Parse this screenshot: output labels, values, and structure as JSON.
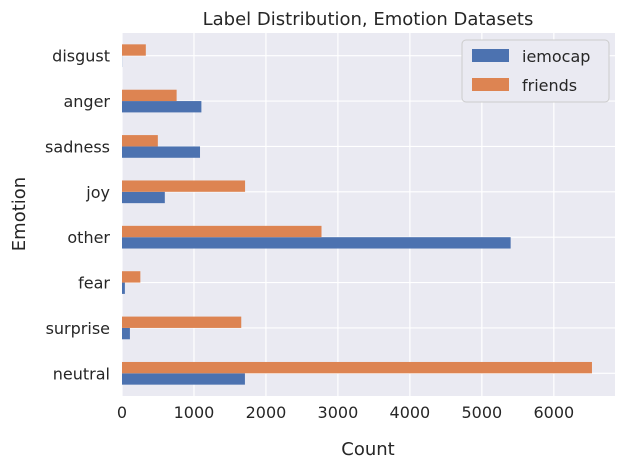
{
  "chart_data": {
    "type": "bar",
    "orientation": "horizontal",
    "title": "Label Distribution, Emotion Datasets",
    "xlabel": "Count",
    "ylabel": "Emotion",
    "categories": [
      "neutral",
      "surprise",
      "fear",
      "other",
      "joy",
      "sadness",
      "anger",
      "disgust"
    ],
    "series": [
      {
        "name": "iemocap",
        "color": "#4c72b0",
        "values": [
          1708,
          110,
          40,
          5400,
          595,
          1084,
          1103,
          2
        ]
      },
      {
        "name": "friends",
        "color": "#dd8452",
        "values": [
          6530,
          1657,
          255,
          2772,
          1710,
          498,
          759,
          331
        ]
      }
    ],
    "xlim": [
      0,
      6850
    ],
    "xticks": [
      0,
      1000,
      2000,
      3000,
      4000,
      5000,
      6000
    ],
    "grid": true,
    "legend_position": "top-right",
    "background": "#eaeaf2",
    "grid_color": "#ffffff"
  }
}
